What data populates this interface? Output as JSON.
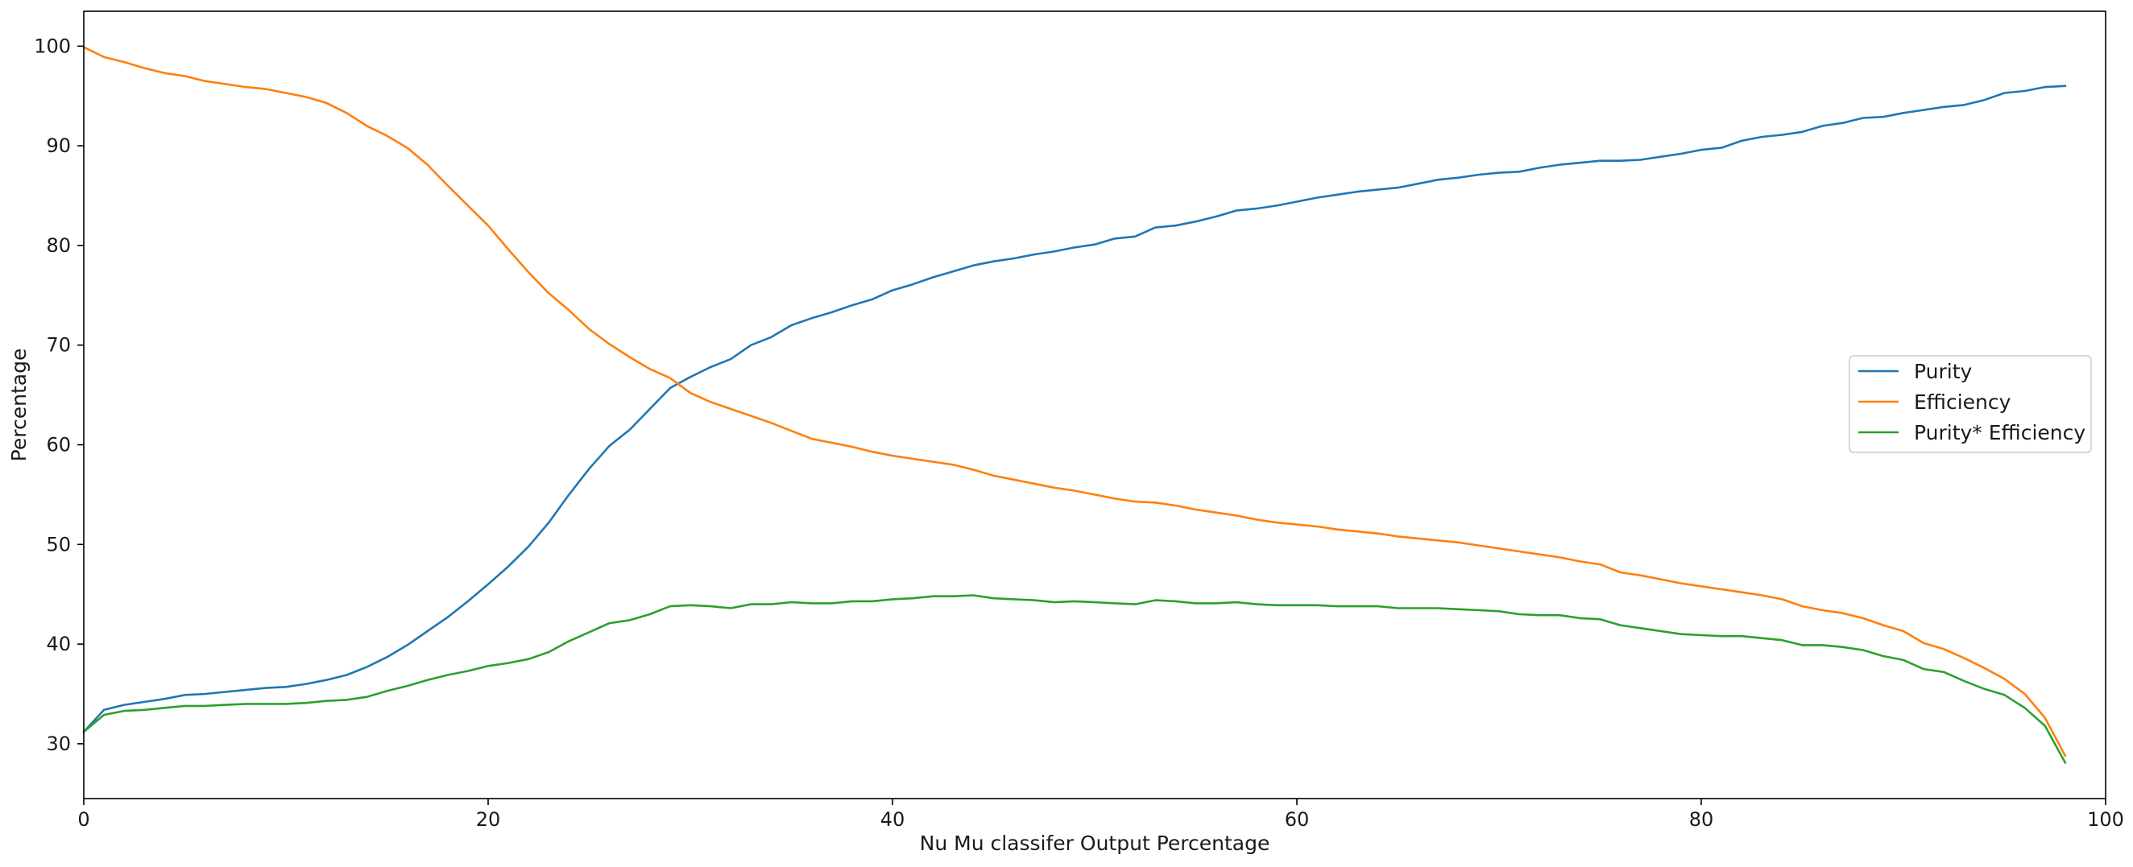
{
  "chart_data": {
    "type": "line",
    "title": "",
    "xlabel": "Nu Mu classifer Output Percentage",
    "ylabel": "Percentage",
    "xlim": [
      0,
      100
    ],
    "ylim": [
      24.5,
      103.5
    ],
    "xticks": [
      0,
      20,
      40,
      60,
      80,
      100
    ],
    "yticks": [
      30,
      40,
      50,
      60,
      70,
      80,
      90,
      100
    ],
    "grid": false,
    "legend_position": "center-right",
    "x": [
      0,
      1,
      2,
      3,
      4,
      5,
      6,
      7,
      8,
      9,
      10,
      11,
      12,
      13,
      14,
      15,
      16,
      17,
      18,
      19,
      20,
      21,
      22,
      23,
      24,
      25,
      26,
      27,
      28,
      29,
      30,
      31,
      32,
      33,
      34,
      35,
      36,
      37,
      38,
      39,
      40,
      41,
      42,
      43,
      44,
      45,
      46,
      47,
      48,
      49,
      50,
      51,
      52,
      53,
      54,
      55,
      56,
      57,
      58,
      59,
      60,
      61,
      62,
      63,
      64,
      65,
      66,
      67,
      68,
      69,
      70,
      71,
      72,
      73,
      74,
      75,
      76,
      77,
      78,
      79,
      80,
      81,
      82,
      83,
      84,
      85,
      86,
      87,
      88,
      89,
      90,
      91,
      92,
      93,
      94,
      95,
      96,
      97,
      98
    ],
    "series": [
      {
        "name": "Purity",
        "color": "#1f77b4",
        "values": [
          31.2,
          33.4,
          33.9,
          34.2,
          34.5,
          34.9,
          35.0,
          35.2,
          35.4,
          35.6,
          35.7,
          36.0,
          36.4,
          36.9,
          37.7,
          38.7,
          39.9,
          41.3,
          42.7,
          44.3,
          46.0,
          47.8,
          49.8,
          52.2,
          55.0,
          57.6,
          59.9,
          61.5,
          63.6,
          65.7,
          66.8,
          67.8,
          68.6,
          70.0,
          70.8,
          72.0,
          72.7,
          73.3,
          74.0,
          74.6,
          75.5,
          76.1,
          76.8,
          77.4,
          78.0,
          78.4,
          78.7,
          79.1,
          79.4,
          79.8,
          80.1,
          80.7,
          80.9,
          81.8,
          82.0,
          82.4,
          82.9,
          83.5,
          83.7,
          84.0,
          84.4,
          84.8,
          85.1,
          85.4,
          85.6,
          85.8,
          86.2,
          86.6,
          86.8,
          87.1,
          87.3,
          87.4,
          87.8,
          88.1,
          88.3,
          88.5,
          88.5,
          88.6,
          88.9,
          89.2,
          89.6,
          89.8,
          90.5,
          90.9,
          91.1,
          91.4,
          92.0,
          92.3,
          92.8,
          92.9,
          93.3,
          93.6,
          93.9,
          94.1,
          94.6,
          95.3,
          95.5,
          95.9,
          96.0
        ]
      },
      {
        "name": "Efficiency",
        "color": "#ff7f0e",
        "values": [
          99.9,
          98.9,
          98.4,
          97.8,
          97.3,
          97.0,
          96.5,
          96.2,
          95.9,
          95.7,
          95.3,
          94.9,
          94.3,
          93.3,
          92.0,
          91.0,
          89.8,
          88.1,
          86.0,
          84.0,
          82.0,
          79.6,
          77.3,
          75.2,
          73.5,
          71.6,
          70.1,
          68.8,
          67.6,
          66.7,
          65.2,
          64.3,
          63.6,
          62.9,
          62.2,
          61.4,
          60.6,
          60.2,
          59.8,
          59.3,
          58.9,
          58.6,
          58.3,
          58.0,
          57.5,
          56.9,
          56.5,
          56.1,
          55.7,
          55.4,
          55.0,
          54.6,
          54.3,
          54.2,
          53.9,
          53.5,
          53.2,
          52.9,
          52.5,
          52.2,
          52.0,
          51.8,
          51.5,
          51.3,
          51.1,
          50.8,
          50.6,
          50.4,
          50.2,
          49.9,
          49.6,
          49.3,
          49.0,
          48.7,
          48.3,
          48.0,
          47.2,
          46.9,
          46.5,
          46.1,
          45.8,
          45.5,
          45.2,
          44.9,
          44.5,
          43.8,
          43.4,
          43.1,
          42.6,
          41.9,
          41.3,
          40.1,
          39.5,
          38.6,
          37.6,
          36.5,
          35.0,
          32.6,
          28.8
        ]
      },
      {
        "name": "Purity* Efficiency",
        "color": "#2ca02c",
        "values": [
          31.2,
          32.9,
          33.3,
          33.4,
          33.6,
          33.8,
          33.8,
          33.9,
          34.0,
          34.0,
          34.0,
          34.1,
          34.3,
          34.4,
          34.7,
          35.3,
          35.8,
          36.4,
          36.9,
          37.3,
          37.8,
          38.1,
          38.5,
          39.2,
          40.3,
          41.2,
          42.1,
          42.4,
          43.0,
          43.8,
          43.9,
          43.8,
          43.6,
          44.0,
          44.0,
          44.2,
          44.1,
          44.1,
          44.3,
          44.3,
          44.5,
          44.6,
          44.8,
          44.8,
          44.9,
          44.6,
          44.5,
          44.4,
          44.2,
          44.3,
          44.2,
          44.1,
          44.0,
          44.4,
          44.3,
          44.1,
          44.1,
          44.2,
          44.0,
          43.9,
          43.9,
          43.9,
          43.8,
          43.8,
          43.8,
          43.6,
          43.6,
          43.6,
          43.5,
          43.4,
          43.3,
          43.0,
          42.9,
          42.9,
          42.6,
          42.5,
          41.9,
          41.6,
          41.3,
          41.0,
          40.9,
          40.8,
          40.8,
          40.6,
          40.4,
          39.9,
          39.9,
          39.7,
          39.4,
          38.8,
          38.4,
          37.5,
          37.2,
          36.3,
          35.5,
          34.9,
          33.6,
          31.8,
          28.1
        ]
      }
    ]
  }
}
